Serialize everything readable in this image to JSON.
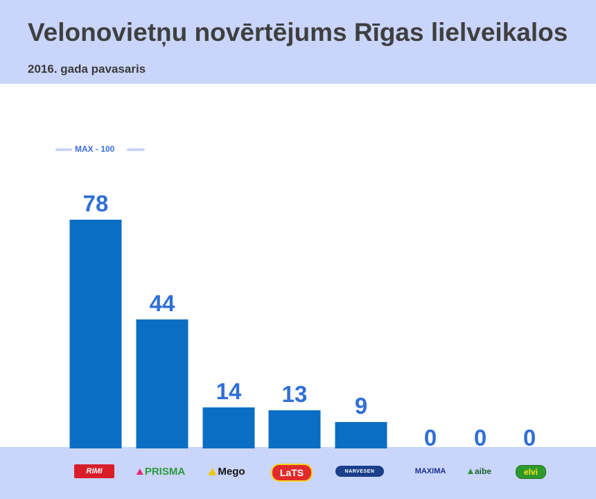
{
  "header": {
    "title": "Velonovietņu novērtējums Rīgas lielveikalos",
    "subtitle": "2016. gada pavasaris"
  },
  "max_marker": {
    "label": "MAX - 100",
    "value": 100
  },
  "chart_data": {
    "type": "bar",
    "title": "Velonovietņu novērtējums Rīgas lielveikalos",
    "subtitle": "2016. gada pavasaris",
    "categories": [
      "Rimi",
      "Prisma",
      "Mego",
      "LaTS",
      "Narvesen",
      "Maxima",
      "aibe",
      "elvi"
    ],
    "values": [
      78,
      44,
      14,
      13,
      9,
      0,
      0,
      0
    ],
    "ylim": [
      0,
      100
    ],
    "bar_color": "#0b6ec5",
    "label_color": "#2f6fd6",
    "grid": false,
    "legend": "none"
  },
  "logos": [
    {
      "id": "rimi",
      "text": "RIMI",
      "icon": "rimi-logo"
    },
    {
      "id": "prisma",
      "text": "PRISMA",
      "icon": "prisma-logo"
    },
    {
      "id": "mego",
      "text": "Mego",
      "icon": "mego-logo"
    },
    {
      "id": "lats",
      "text": "LaTS",
      "icon": "lats-logo"
    },
    {
      "id": "narvesen",
      "text": "NARVESEN",
      "icon": "narvesen-logo"
    },
    {
      "id": "maxima",
      "text": "MAXIMA",
      "icon": "maxima-logo"
    },
    {
      "id": "aibe",
      "text": "aibe",
      "icon": "aibe-logo"
    },
    {
      "id": "elvi",
      "text": "elvi",
      "icon": "elvi-logo"
    }
  ],
  "colors": {
    "band": "#c9d5fb",
    "bar": "#0b6ec5",
    "text_dark": "#3f3f3f"
  }
}
